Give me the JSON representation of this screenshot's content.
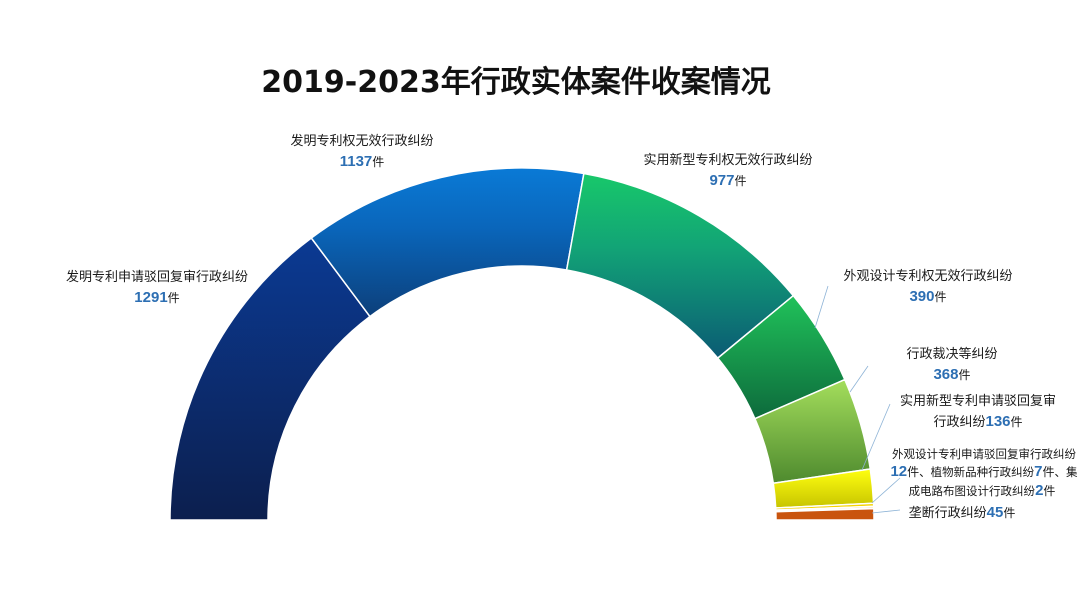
{
  "chart_data": {
    "type": "pie",
    "title": "2019-2023年行政实体案件收案情况",
    "unit": "件",
    "series": [
      {
        "name": "发明专利申请驳回复审行政纠纷",
        "value": 1291,
        "color": "#0e2a6b"
      },
      {
        "name": "发明专利权无效行政纠纷",
        "value": 1137,
        "color": "#0a6fc8"
      },
      {
        "name": "实用新型专利权无效行政纠纷",
        "value": 977,
        "color": "#17b86a"
      },
      {
        "name": "外观设计专利权无效行政纠纷",
        "value": 390,
        "color": "#1aa64e"
      },
      {
        "name": "行政裁决等纠纷",
        "value": 368,
        "color": "#86cc4a"
      },
      {
        "name": "实用新型专利申请驳回复审行政纠纷",
        "value": 136,
        "color": "#f0f000"
      },
      {
        "name": "外观设计专利申请驳回复审行政纠纷",
        "value": 12,
        "color": "#f5d300"
      },
      {
        "name": "植物新品种行政纠纷",
        "value": 7,
        "color": "#f2c14a"
      },
      {
        "name": "集成电路布图设计行政纠纷",
        "value": 2,
        "color": "#e3a34a"
      },
      {
        "name": "垄断行政纠纷",
        "value": 45,
        "color": "#c9540e"
      }
    ],
    "label_text": {
      "combined_line1": "外观设计专利申请驳回复审行政纠纷",
      "separator": "、",
      "combined_plant": "植物新品种行政纠纷",
      "combined_ic_prefix": "集",
      "combined_ic_rest": "成电路布图设计行政纠纷",
      "utility_reexam_line1": "实用新型专利申请驳回复审",
      "utility_reexam_line2": "行政纠纷"
    }
  }
}
